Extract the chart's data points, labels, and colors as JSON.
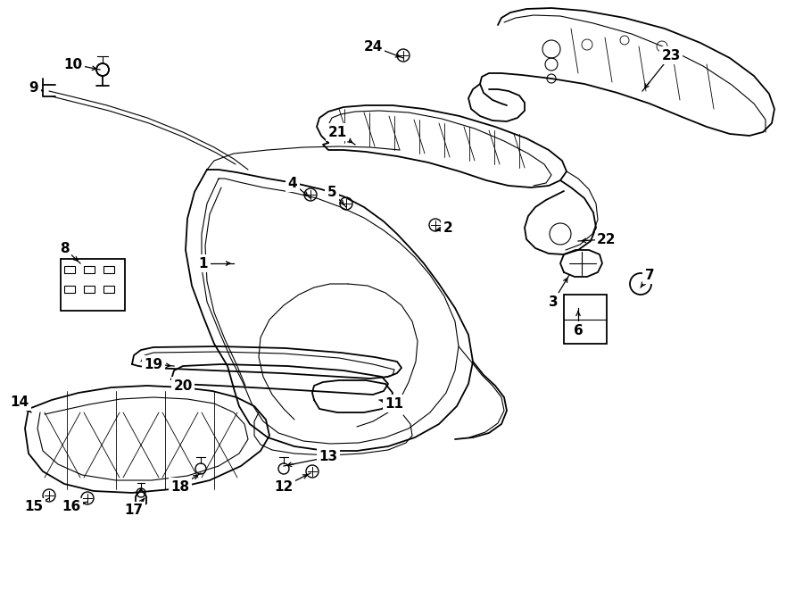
{
  "bg_color": "#ffffff",
  "line_color": "#000000",
  "fig_width": 9.0,
  "fig_height": 6.62,
  "dpi": 100,
  "xlim": [
    0,
    900
  ],
  "ylim": [
    0,
    662
  ]
}
